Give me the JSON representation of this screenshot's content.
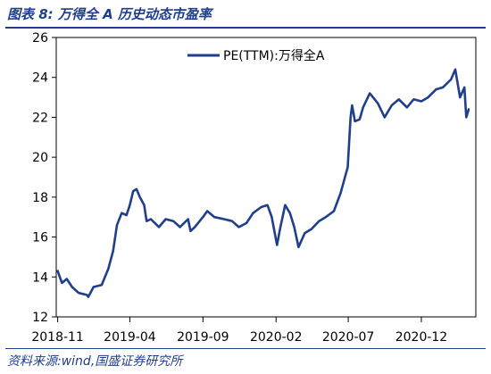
{
  "header": {
    "title": "图表 8:  万得全 A 历史动态市盈率"
  },
  "footer": {
    "source": "资料来源:wind,国盛证券研究所"
  },
  "chart_data": {
    "type": "line",
    "title": "",
    "xlabel": "",
    "ylabel": "",
    "ylim": [
      12,
      26
    ],
    "yticks": [
      12,
      14,
      16,
      18,
      20,
      22,
      24,
      26
    ],
    "xticks": [
      "2018-11",
      "2019-04",
      "2019-09",
      "2020-02",
      "2020-07",
      "2020-12"
    ],
    "grid": false,
    "legend": {
      "position": "top-right"
    },
    "series": [
      {
        "name": "PE(TTM):万得全A",
        "color": "#1f3f8c",
        "x": [
          "2018-11-01",
          "2018-11-10",
          "2018-11-20",
          "2018-12-01",
          "2018-12-15",
          "2019-01-01",
          "2019-01-04",
          "2019-01-15",
          "2019-02-01",
          "2019-02-15",
          "2019-02-25",
          "2019-03-05",
          "2019-03-15",
          "2019-03-25",
          "2019-04-01",
          "2019-04-08",
          "2019-04-15",
          "2019-04-22",
          "2019-05-01",
          "2019-05-06",
          "2019-05-15",
          "2019-06-01",
          "2019-06-15",
          "2019-07-01",
          "2019-07-15",
          "2019-08-01",
          "2019-08-06",
          "2019-08-15",
          "2019-09-01",
          "2019-09-10",
          "2019-09-25",
          "2019-10-15",
          "2019-11-01",
          "2019-11-15",
          "2019-12-01",
          "2019-12-15",
          "2020-01-01",
          "2020-01-14",
          "2020-01-23",
          "2020-02-03",
          "2020-02-10",
          "2020-02-20",
          "2020-03-01",
          "2020-03-10",
          "2020-03-19",
          "2020-04-01",
          "2020-04-15",
          "2020-05-01",
          "2020-05-15",
          "2020-06-01",
          "2020-06-15",
          "2020-06-30",
          "2020-07-06",
          "2020-07-09",
          "2020-07-15",
          "2020-07-25",
          "2020-08-01",
          "2020-08-15",
          "2020-09-01",
          "2020-09-15",
          "2020-09-30",
          "2020-10-15",
          "2020-11-01",
          "2020-11-15",
          "2020-12-01",
          "2020-12-15",
          "2021-01-01",
          "2021-01-15",
          "2021-02-01",
          "2021-02-10",
          "2021-02-20",
          "2021-03-01",
          "2021-03-05",
          "2021-03-10"
        ],
        "values": [
          14.3,
          13.7,
          13.9,
          13.5,
          13.2,
          13.1,
          13.0,
          13.5,
          13.6,
          14.4,
          15.3,
          16.6,
          17.2,
          17.1,
          17.6,
          18.3,
          18.4,
          18.0,
          17.6,
          16.8,
          16.9,
          16.5,
          16.9,
          16.8,
          16.5,
          16.9,
          16.3,
          16.5,
          17.0,
          17.3,
          17.0,
          16.9,
          16.8,
          16.5,
          16.7,
          17.2,
          17.5,
          17.6,
          17.0,
          15.6,
          16.5,
          17.6,
          17.2,
          16.5,
          15.5,
          16.2,
          16.4,
          16.8,
          17.0,
          17.3,
          18.2,
          19.5,
          22.0,
          22.6,
          21.8,
          21.9,
          22.5,
          23.2,
          22.7,
          22.0,
          22.6,
          22.9,
          22.5,
          22.9,
          22.8,
          23.0,
          23.4,
          23.5,
          23.9,
          24.4,
          23.0,
          23.5,
          22.0,
          22.4
        ]
      }
    ]
  }
}
